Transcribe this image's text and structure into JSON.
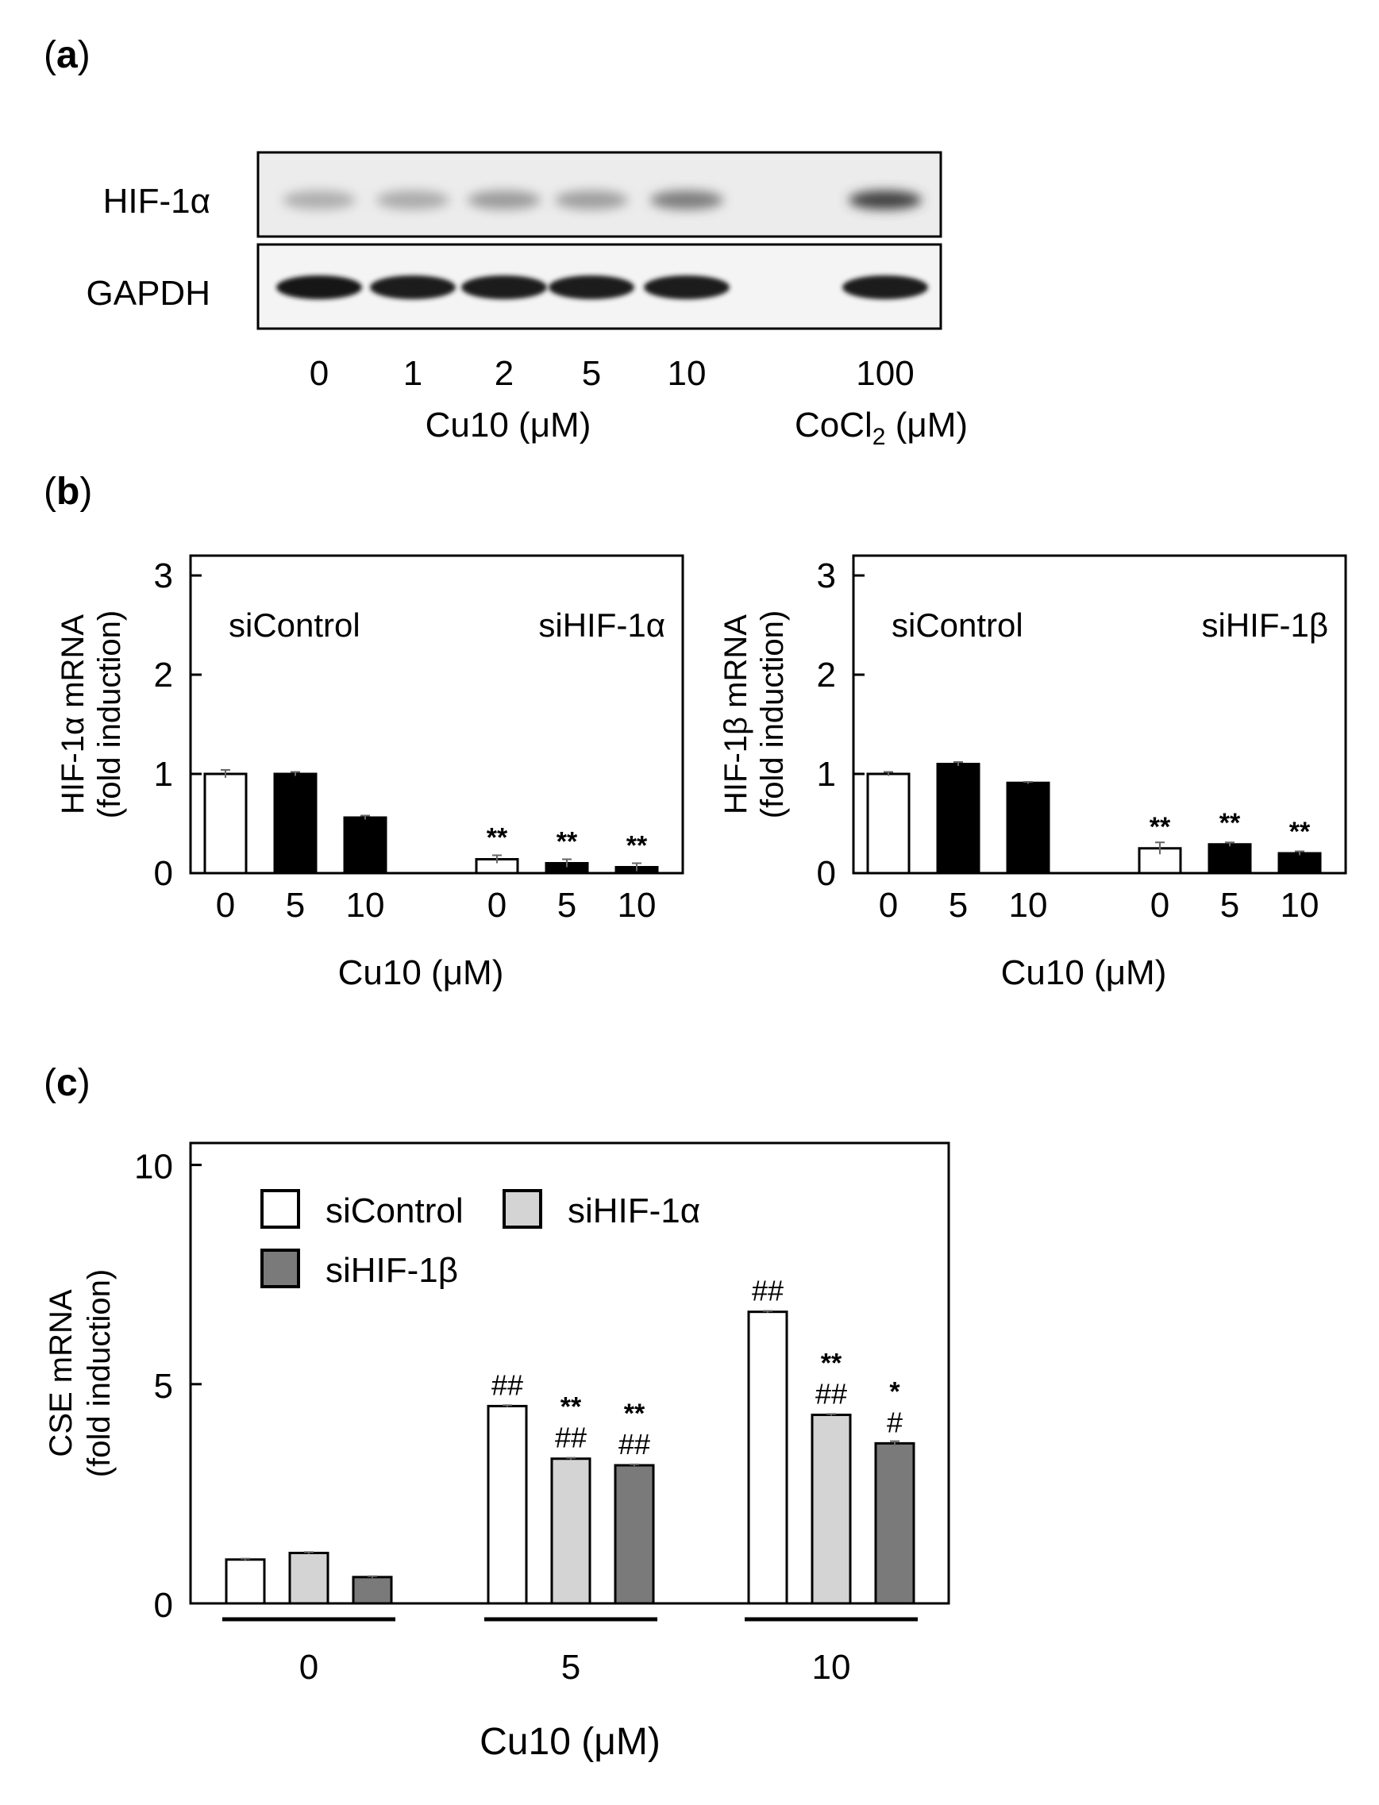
{
  "panels": {
    "a": "a",
    "b": "b",
    "c": "c"
  },
  "blot": {
    "bands": [
      "HIF-1α",
      "GAPDH"
    ],
    "lane_labels": [
      "0",
      "1",
      "2",
      "5",
      "10",
      "100"
    ],
    "cu_label": "Cu10 (μM)",
    "cocl_label_main": "CoCl",
    "cocl_label_sub": "2",
    "cocl_label_unit": " (μM)",
    "hif_intensity": [
      0.3,
      0.32,
      0.4,
      0.38,
      0.55,
      0.0,
      0.85
    ],
    "gapdh_intensity": [
      0.95,
      0.92,
      0.92,
      0.92,
      0.92,
      0.0,
      0.92
    ]
  },
  "chart_data": [
    {
      "id": "b-left",
      "type": "bar",
      "ylabel": "HIF-1α mRNA",
      "ylabel2": "(fold induction)",
      "xlabel": "Cu10 (μM)",
      "ylim": [
        0,
        3.2
      ],
      "yticks": [
        "0",
        "1",
        "2",
        "3"
      ],
      "groups": [
        "siControl",
        "siHIF-1α"
      ],
      "categories": [
        "0",
        "5",
        "10",
        "0",
        "5",
        "10"
      ],
      "values": [
        1.0,
        1.0,
        0.56,
        0.14,
        0.1,
        0.06
      ],
      "errors": [
        0.04,
        0.02,
        0.02,
        0.04,
        0.04,
        0.04
      ],
      "fills": [
        "white",
        "black",
        "black",
        "white",
        "black",
        "black"
      ],
      "significance": [
        "",
        "",
        "",
        "**",
        "**",
        "**"
      ]
    },
    {
      "id": "b-right",
      "type": "bar",
      "ylabel": "HIF-1β mRNA",
      "ylabel2": "(fold induction)",
      "xlabel": "Cu10 (μM)",
      "ylim": [
        0,
        3.2
      ],
      "yticks": [
        "0",
        "1",
        "2",
        "3"
      ],
      "groups": [
        "siControl",
        "siHIF-1β"
      ],
      "categories": [
        "0",
        "5",
        "10",
        "0",
        "5",
        "10"
      ],
      "values": [
        1.0,
        1.1,
        0.91,
        0.25,
        0.29,
        0.2
      ],
      "errors": [
        0.02,
        0.02,
        0.01,
        0.06,
        0.02,
        0.02
      ],
      "fills": [
        "white",
        "black",
        "black",
        "white",
        "black",
        "black"
      ],
      "significance": [
        "",
        "",
        "",
        "**",
        "**",
        "**"
      ]
    },
    {
      "id": "c",
      "type": "bar",
      "ylabel": "CSE mRNA",
      "ylabel2": "(fold induction)",
      "xlabel": "Cu10 (μM)",
      "ylim": [
        0,
        10.5
      ],
      "yticks": [
        "0",
        "5",
        "10"
      ],
      "categories": [
        "0",
        "5",
        "10"
      ],
      "series": [
        {
          "name": "siControl",
          "color": "#ffffff",
          "values": [
            1.0,
            4.5,
            6.65
          ],
          "errors": [
            0.02,
            0.02,
            0.02
          ],
          "hash": [
            "",
            "##",
            "##"
          ],
          "star": [
            "",
            "",
            ""
          ]
        },
        {
          "name": "siHIF-1α",
          "color": "#d4d4d4",
          "values": [
            1.15,
            3.3,
            4.3
          ],
          "errors": [
            0.02,
            0.02,
            0.02
          ],
          "hash": [
            "",
            "##",
            "##"
          ],
          "star": [
            "",
            "**",
            "**"
          ]
        },
        {
          "name": "siHIF-1β",
          "color": "#7a7a7a",
          "values": [
            0.6,
            3.15,
            3.65
          ],
          "errors": [
            0.02,
            0.02,
            0.05
          ],
          "hash": [
            "",
            "##",
            "#"
          ],
          "star": [
            "",
            "**",
            "*"
          ]
        }
      ],
      "legend": "top-left"
    }
  ]
}
